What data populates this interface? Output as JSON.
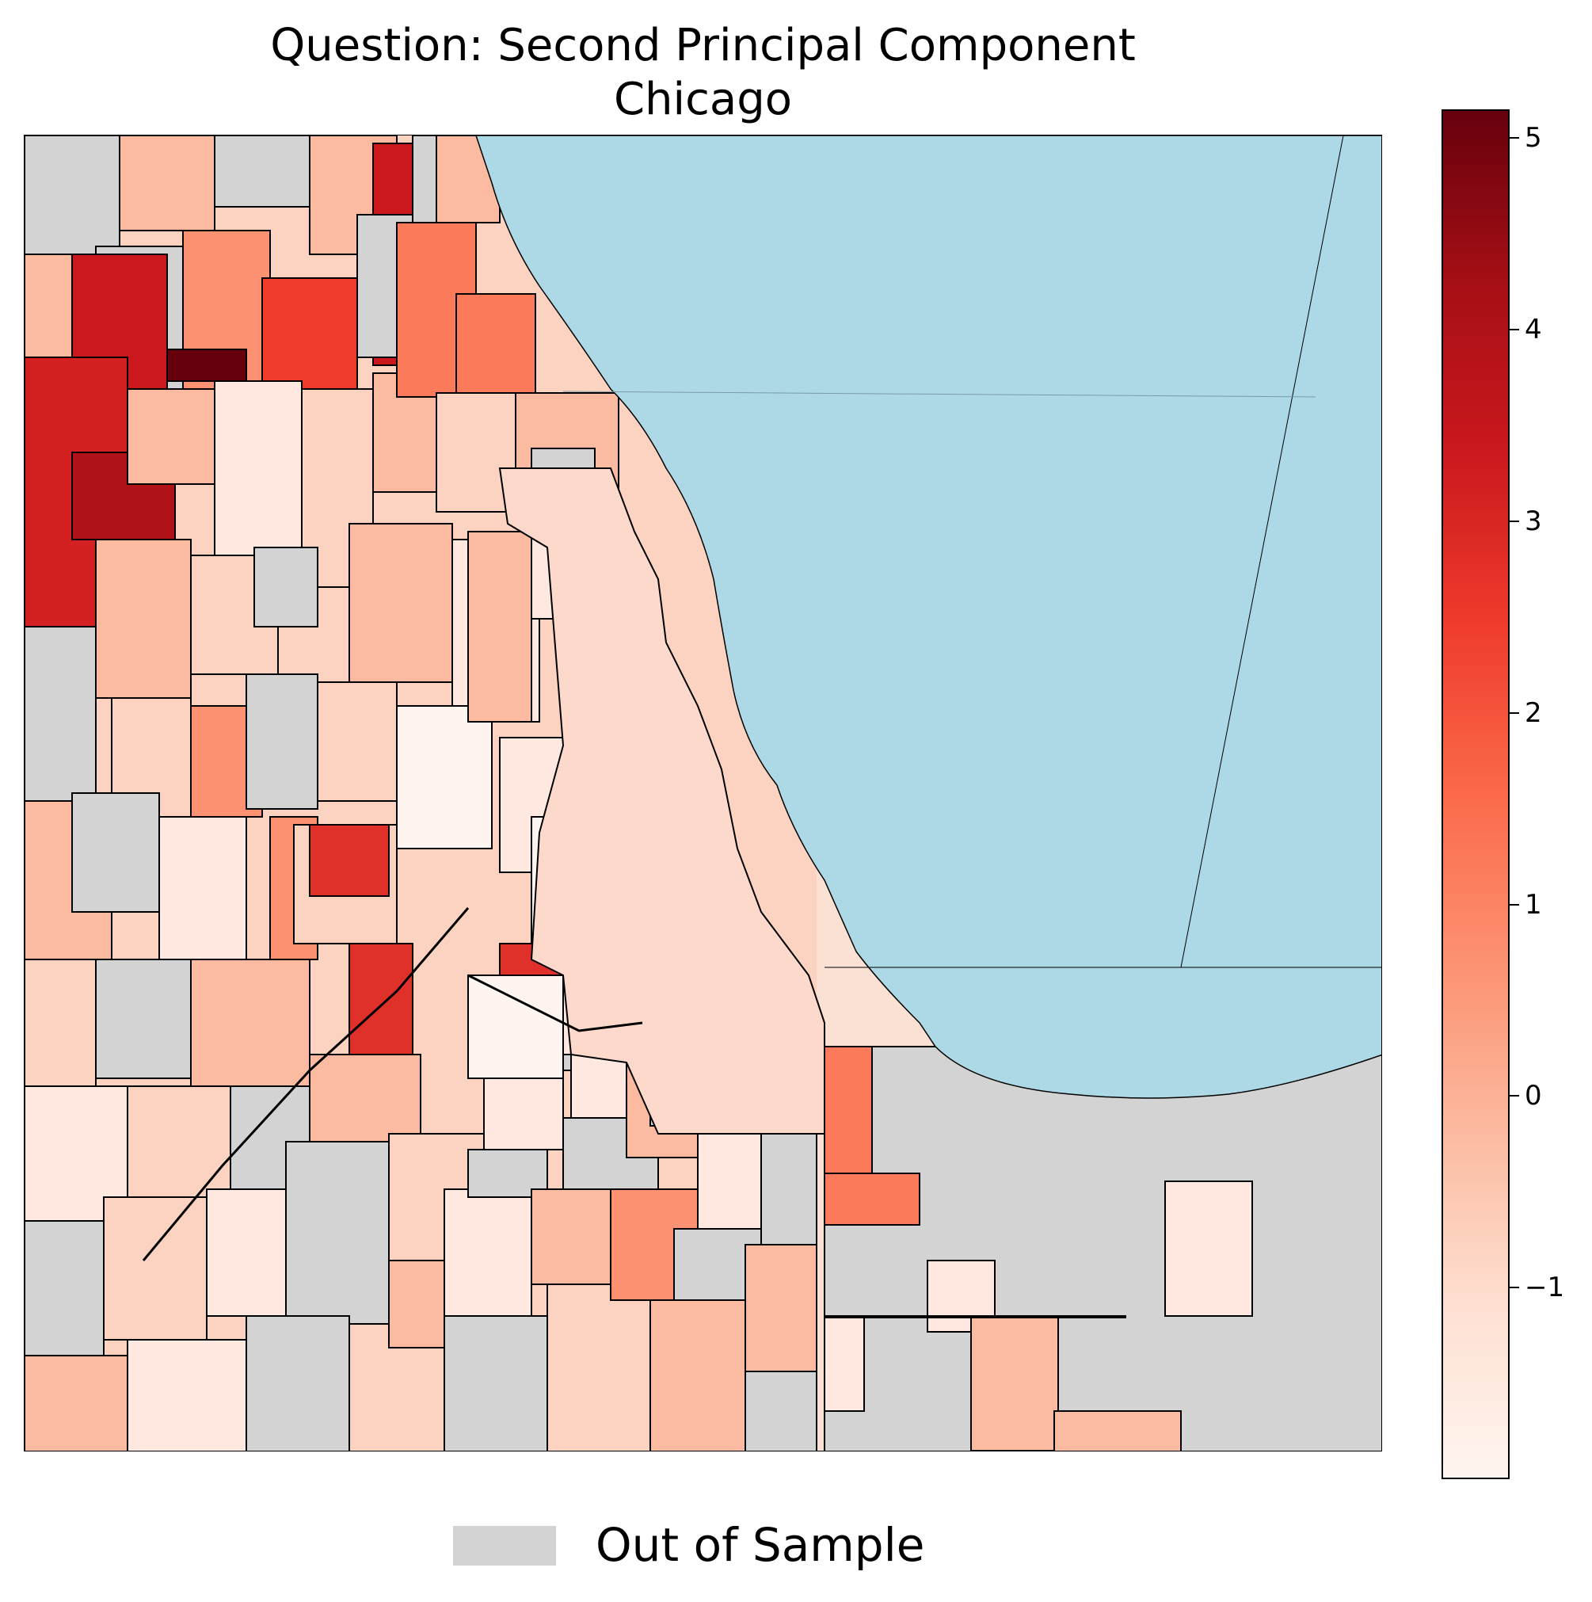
{
  "title": {
    "line1": "Question: Second Principal Component",
    "line2": "Chicago"
  },
  "colorbar": {
    "colormap": "Reds",
    "min": -2.0,
    "max": 5.15,
    "ticks": [
      {
        "value": 5,
        "label": "5"
      },
      {
        "value": 4,
        "label": "4"
      },
      {
        "value": 3,
        "label": "3"
      },
      {
        "value": 2,
        "label": "2"
      },
      {
        "value": 1,
        "label": "1"
      },
      {
        "value": 0,
        "label": "0"
      },
      {
        "value": -1,
        "label": "−1"
      }
    ]
  },
  "legend": {
    "label": "Out of Sample",
    "color": "#d3d3d3"
  },
  "colors": {
    "water": "#add8e6",
    "out_of_sample": "#d3d3d3",
    "boundary": "#000000",
    "scale_low": "#fff5f0",
    "scale_high": "#67000d"
  }
}
